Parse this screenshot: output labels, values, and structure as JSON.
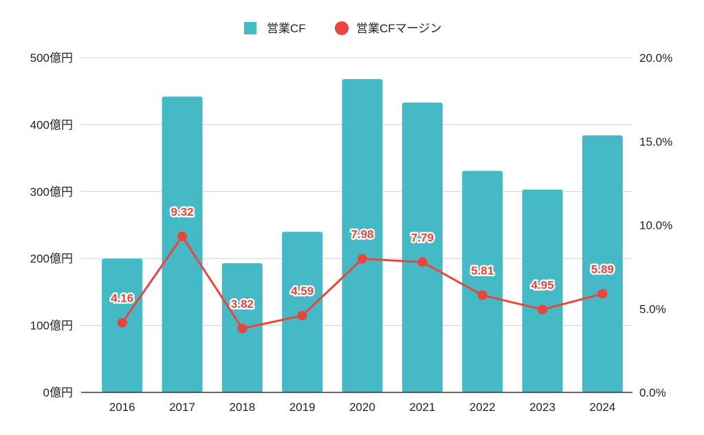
{
  "legend": {
    "bar_label": "営業CF",
    "line_label": "営業CFマージン"
  },
  "chart_data": {
    "type": "bar",
    "categories": [
      "2016",
      "2017",
      "2018",
      "2019",
      "2020",
      "2021",
      "2022",
      "2023",
      "2024"
    ],
    "series": [
      {
        "name": "営業CF",
        "type": "bar",
        "axis": "left",
        "values": [
          200,
          442,
          193,
          240,
          468,
          433,
          331,
          303,
          384
        ]
      },
      {
        "name": "営業CFマージン",
        "type": "line",
        "axis": "right",
        "values": [
          4.16,
          9.32,
          3.82,
          4.59,
          7.98,
          7.79,
          5.81,
          4.95,
          5.89
        ],
        "data_labels": [
          "4.16",
          "9.32",
          "3.82",
          "4.59",
          "7.98",
          "7.79",
          "5.81",
          "4.95",
          "5.89"
        ]
      }
    ],
    "y_left": {
      "ylim": [
        0,
        500
      ],
      "ticks": [
        0,
        100,
        200,
        300,
        400,
        500
      ],
      "tick_labels": [
        "0億円",
        "100億円",
        "200億円",
        "300億円",
        "400億円",
        "500億円"
      ]
    },
    "y_right": {
      "ylim": [
        0,
        20
      ],
      "ticks": [
        0,
        5,
        10,
        15,
        20
      ],
      "tick_labels": [
        "0.0%",
        "5.0%",
        "10.0%",
        "15.0%",
        "20.0%"
      ]
    },
    "grid": true,
    "legend_position": "top-center",
    "colors": {
      "bar": "#45bac6",
      "line": "#e8453c",
      "grid": "#d0d0d0",
      "axis": "#333333"
    }
  }
}
